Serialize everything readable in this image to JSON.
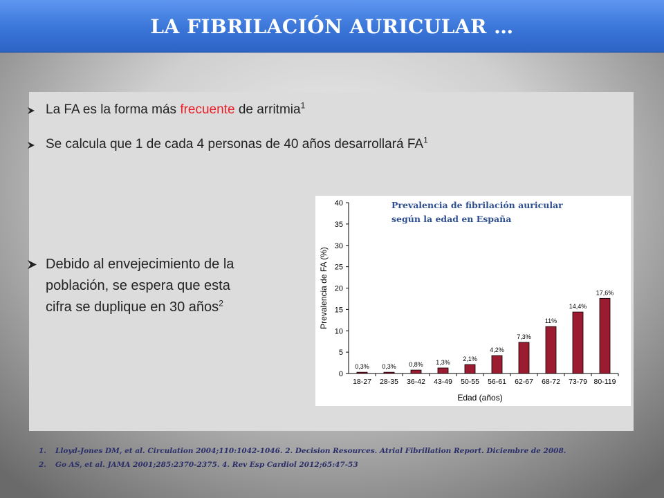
{
  "slide": {
    "title": "LA FIBRILACIÓN AURICULAR …",
    "bullets": [
      {
        "pre": "La FA es la forma más ",
        "highlight": "frecuente",
        "post": " de arritmia",
        "sup": "1"
      },
      {
        "pre": "Se calcula que 1 de cada 4 personas de 40 años desarrollará FA",
        "sup": "1"
      },
      {
        "lines": [
          "Debido al envejecimiento de la",
          "población, se espera que esta",
          "cifra se duplique en 30 años"
        ],
        "sup": "2"
      }
    ],
    "references": [
      {
        "num": "1.",
        "text": "Lloyd-Jones DM, et al. Circulation 2004;110:1042-1046. 2. Decision Resources. Atrial Fibrillation Report. Diciembre de 2008."
      },
      {
        "num": "2.",
        "text": "Go AS, et al. JAMA 2001;285:2370-2375. 4. Rev Esp Cardiol 2012;65:47-53"
      }
    ]
  },
  "colors": {
    "bar": "#9b1b30",
    "header": "#3a75d8",
    "highlight": "#e8202a",
    "chart_title": "#2e4f8f"
  },
  "chart_data": {
    "type": "bar",
    "title_lines": [
      "Prevalencia de fibrilación auricular",
      "según la edad en España"
    ],
    "categories": [
      "18-27",
      "28-35",
      "36-42",
      "43-49",
      "50-55",
      "56-61",
      "62-67",
      "68-72",
      "73-79",
      "80-119"
    ],
    "values": [
      0.3,
      0.3,
      0.8,
      1.3,
      2.1,
      4.2,
      7.3,
      11,
      14.4,
      17.6
    ],
    "data_labels": [
      "0,3%",
      "0,3%",
      "0,8%",
      "1,3%",
      "2,1%",
      "4,2%",
      "7,3%",
      "11%",
      "14,4%",
      "17,6%"
    ],
    "xlabel": "Edad (años)",
    "ylabel": "Prevalencia de FA (%)",
    "ylim": [
      0,
      40
    ],
    "yticks": [
      0,
      5,
      10,
      15,
      20,
      25,
      30,
      35,
      40
    ],
    "grid": false
  }
}
